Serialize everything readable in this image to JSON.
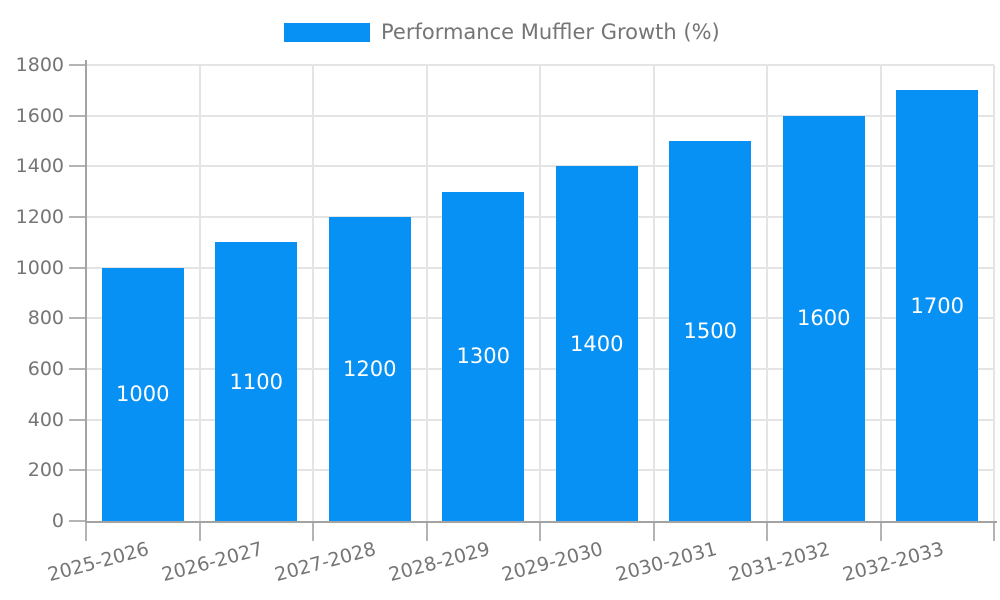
{
  "legend": {
    "label": "Performance Muffler Growth (%)"
  },
  "colors": {
    "bar": "#0891f5",
    "bar_label": "#ffffff",
    "axis_text": "#757575",
    "grid": "#e4e4e4",
    "axis_line": "#a3a3a3",
    "tick": "#b4b4b4",
    "background": "#ffffff"
  },
  "chart_data": {
    "type": "bar",
    "title": "Performance Muffler Growth (%)",
    "categories": [
      "2025-2026",
      "2026-2027",
      "2027-2028",
      "2028-2029",
      "2029-2030",
      "2030-2031",
      "2031-2032",
      "2032-2033"
    ],
    "values": [
      1000,
      1100,
      1200,
      1300,
      1400,
      1500,
      1600,
      1700
    ],
    "xlabel": "",
    "ylabel": "",
    "ylim": [
      0,
      1800
    ],
    "yticks": [
      0,
      200,
      400,
      600,
      800,
      1000,
      1200,
      1400,
      1600,
      1800
    ],
    "grid": true,
    "legend_position": "top-center",
    "bar_label_position": "inside-center",
    "x_tick_rotation_deg": -15
  }
}
